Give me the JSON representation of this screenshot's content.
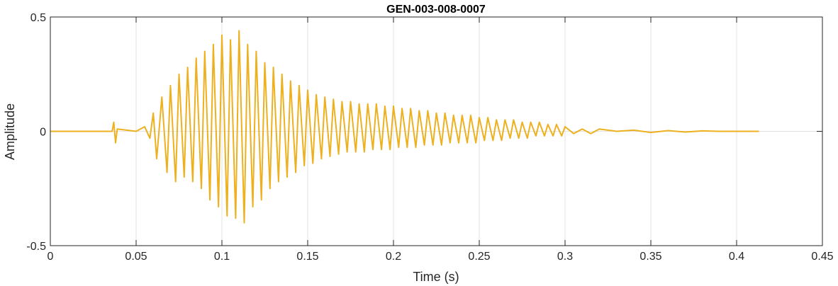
{
  "chart_data": {
    "type": "line",
    "title": "GEN-003-008-0007",
    "xlabel": "Time (s)",
    "ylabel": "Amplitude",
    "xlim": [
      0,
      0.45
    ],
    "ylim": [
      -0.5,
      0.5
    ],
    "xticks": [
      0,
      0.05,
      0.1,
      0.15,
      0.2,
      0.25,
      0.3,
      0.35,
      0.4,
      0.45
    ],
    "xtick_labels": [
      "0",
      "0.05",
      "0.1",
      "0.15",
      "0.2",
      "0.25",
      "0.3",
      "0.35",
      "0.4",
      "0.45"
    ],
    "yticks": [
      -0.5,
      0,
      0.5
    ],
    "ytick_labels": [
      "-0.5",
      "0",
      "0.5"
    ],
    "grid": true,
    "line_color": "#EDB120",
    "series": [
      {
        "x": [
          0.0,
          0.036,
          0.037,
          0.038,
          0.039,
          0.05,
          0.055,
          0.058,
          0.06,
          0.062,
          0.065,
          0.068,
          0.07,
          0.073,
          0.075,
          0.078,
          0.08,
          0.083,
          0.085,
          0.088,
          0.09,
          0.093,
          0.095,
          0.098,
          0.1,
          0.103,
          0.105,
          0.108,
          0.11,
          0.113,
          0.115,
          0.118,
          0.12,
          0.123,
          0.125,
          0.128,
          0.13,
          0.133,
          0.135,
          0.138,
          0.14,
          0.143,
          0.145,
          0.148,
          0.15,
          0.153,
          0.155,
          0.158,
          0.16,
          0.163,
          0.165,
          0.168,
          0.17,
          0.173,
          0.175,
          0.178,
          0.18,
          0.183,
          0.185,
          0.188,
          0.19,
          0.193,
          0.195,
          0.198,
          0.2,
          0.203,
          0.205,
          0.208,
          0.21,
          0.213,
          0.215,
          0.218,
          0.22,
          0.223,
          0.225,
          0.228,
          0.23,
          0.233,
          0.235,
          0.238,
          0.24,
          0.243,
          0.245,
          0.248,
          0.25,
          0.253,
          0.255,
          0.258,
          0.26,
          0.263,
          0.265,
          0.268,
          0.27,
          0.273,
          0.275,
          0.278,
          0.28,
          0.283,
          0.285,
          0.288,
          0.29,
          0.293,
          0.295,
          0.298,
          0.3,
          0.305,
          0.31,
          0.315,
          0.32,
          0.33,
          0.34,
          0.35,
          0.36,
          0.37,
          0.38,
          0.39,
          0.4,
          0.413
        ],
        "y": [
          0.0,
          0.0,
          0.04,
          -0.05,
          0.01,
          0.0,
          0.02,
          -0.03,
          0.08,
          -0.12,
          0.15,
          -0.18,
          0.2,
          -0.22,
          0.25,
          -0.2,
          0.28,
          -0.22,
          0.32,
          -0.25,
          0.35,
          -0.3,
          0.38,
          -0.33,
          0.42,
          -0.37,
          0.4,
          -0.38,
          0.44,
          -0.4,
          0.38,
          -0.33,
          0.35,
          -0.3,
          0.3,
          -0.25,
          0.28,
          -0.22,
          0.25,
          -0.2,
          0.22,
          -0.18,
          0.2,
          -0.15,
          0.18,
          -0.14,
          0.16,
          -0.12,
          0.15,
          -0.11,
          0.14,
          -0.1,
          0.13,
          -0.09,
          0.13,
          -0.09,
          0.12,
          -0.09,
          0.12,
          -0.08,
          0.12,
          -0.08,
          0.11,
          -0.08,
          0.11,
          -0.07,
          0.1,
          -0.07,
          0.1,
          -0.07,
          0.09,
          -0.06,
          0.09,
          -0.06,
          0.08,
          -0.06,
          0.08,
          -0.05,
          0.07,
          -0.05,
          0.07,
          -0.05,
          0.07,
          -0.05,
          0.06,
          -0.04,
          0.06,
          -0.04,
          0.05,
          -0.04,
          0.05,
          -0.03,
          0.05,
          -0.03,
          0.04,
          -0.03,
          0.04,
          -0.02,
          0.04,
          -0.02,
          0.03,
          -0.02,
          0.03,
          -0.02,
          0.02,
          -0.01,
          0.01,
          -0.01,
          0.01,
          0.0,
          0.005,
          -0.005,
          0.003,
          -0.003,
          0.002,
          0.0,
          0.0,
          0.0
        ]
      }
    ]
  }
}
